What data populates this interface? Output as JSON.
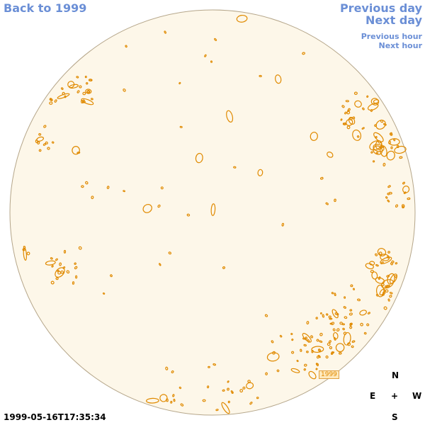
{
  "nav": {
    "back": "Back to 1999",
    "previous_day": "Previous day",
    "next_day": "Next day",
    "previous_hour": "Previous hour",
    "next_hour": "Next hour"
  },
  "compass": {
    "north": "N",
    "east": "E",
    "center": "+",
    "west": "W",
    "south": "S"
  },
  "timestamp": "1999-05-16T17:35:34",
  "year_badge": "1999",
  "colors": {
    "disk_fill": "#fdf7e9",
    "disk_border": "#b5a68a",
    "contour": "#e08a00",
    "link": "#6b8fd6"
  }
}
